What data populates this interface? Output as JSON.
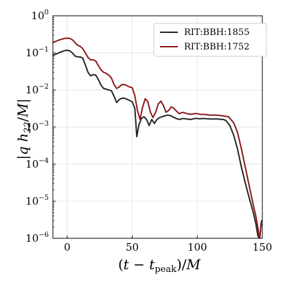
{
  "chart_data": {
    "type": "line",
    "title": "",
    "xlabel": "(t − t_peak)/M",
    "ylabel": "|q h22/M|",
    "xlim": [
      -11,
      150
    ],
    "ylim": [
      1e-06,
      1
    ],
    "yscale": "log",
    "grid": true,
    "legend_position": "top-right",
    "x_ticks": [
      0,
      50,
      100,
      150
    ],
    "y_ticks": [
      1e-06,
      1e-05,
      0.0001,
      0.001,
      0.01,
      0.1,
      1
    ],
    "series": [
      {
        "name": "RIT:BBH:1855",
        "color": "#262626",
        "x": [
          -11,
          -8,
          -5,
          -2,
          0,
          2,
          4,
          6,
          8,
          10,
          12,
          14,
          16,
          18,
          20,
          22,
          24,
          26,
          28,
          30,
          32,
          34,
          36,
          38,
          40,
          42,
          44,
          46,
          48,
          50,
          52,
          53.5,
          55,
          57,
          59,
          61,
          63,
          65,
          67,
          69,
          71,
          73,
          75,
          77,
          79,
          81,
          83,
          86,
          89,
          92,
          95,
          98,
          100,
          102,
          105,
          110,
          115,
          120,
          122,
          125,
          128,
          131,
          134,
          137,
          140,
          143,
          145,
          146.5,
          147.5,
          148,
          148.5,
          149,
          149.5,
          150
        ],
        "y": [
          0.085,
          0.095,
          0.105,
          0.115,
          0.118,
          0.113,
          0.1,
          0.082,
          0.078,
          0.078,
          0.072,
          0.047,
          0.03,
          0.024,
          0.026,
          0.025,
          0.019,
          0.0135,
          0.011,
          0.0105,
          0.01,
          0.0095,
          0.0068,
          0.0046,
          0.0055,
          0.006,
          0.006,
          0.0056,
          0.0052,
          0.0048,
          0.0032,
          0.00055,
          0.0011,
          0.0017,
          0.0019,
          0.0016,
          0.0011,
          0.0016,
          0.00125,
          0.0016,
          0.0018,
          0.0019,
          0.002,
          0.0021,
          0.00205,
          0.0019,
          0.00175,
          0.0016,
          0.0017,
          0.00165,
          0.0016,
          0.0017,
          0.0017,
          0.00168,
          0.0017,
          0.00165,
          0.00165,
          0.0016,
          0.0015,
          0.0011,
          0.0006,
          0.00025,
          8e-05,
          3e-05,
          1.2e-05,
          5e-06,
          2.5e-06,
          1.2e-06,
          1e-06,
          1e-06,
          1.5e-06,
          2.2e-06,
          2.3e-06,
          2.3e-06
        ]
      },
      {
        "name": "RIT:BBH:1752",
        "color": "#8b1a1a",
        "x": [
          -11,
          -8,
          -5,
          -2,
          0,
          2,
          4,
          6,
          8,
          10,
          12,
          14,
          16,
          18,
          20,
          22,
          24,
          26,
          28,
          30,
          32,
          34,
          36,
          38,
          40,
          42,
          44,
          46,
          48,
          50,
          52,
          54,
          56,
          58,
          60,
          62,
          64,
          66,
          68,
          70,
          72,
          74,
          76,
          78,
          80,
          82,
          84,
          86,
          89,
          92,
          95,
          98,
          100,
          102,
          105,
          110,
          115,
          120,
          124,
          128,
          131,
          134,
          137,
          140,
          143,
          145,
          146.5,
          147.5,
          148,
          148.5,
          149,
          149.5,
          150
        ],
        "y": [
          0.19,
          0.21,
          0.23,
          0.245,
          0.25,
          0.245,
          0.225,
          0.19,
          0.16,
          0.15,
          0.13,
          0.1,
          0.075,
          0.065,
          0.065,
          0.06,
          0.045,
          0.035,
          0.03,
          0.028,
          0.025,
          0.021,
          0.014,
          0.011,
          0.012,
          0.014,
          0.014,
          0.013,
          0.012,
          0.0115,
          0.007,
          0.0028,
          0.0016,
          0.0035,
          0.0058,
          0.0048,
          0.0025,
          0.0018,
          0.0025,
          0.0042,
          0.005,
          0.0038,
          0.0025,
          0.0028,
          0.0035,
          0.0032,
          0.0027,
          0.0023,
          0.0025,
          0.0023,
          0.0022,
          0.0023,
          0.0023,
          0.0022,
          0.0022,
          0.0021,
          0.0021,
          0.002,
          0.0019,
          0.0013,
          0.0007,
          0.00025,
          8e-05,
          2.5e-05,
          8e-06,
          4e-06,
          2e-06,
          1.2e-06,
          1e-06,
          1.5e-06,
          2.5e-06,
          3e-06,
          3e-06
        ]
      }
    ]
  }
}
